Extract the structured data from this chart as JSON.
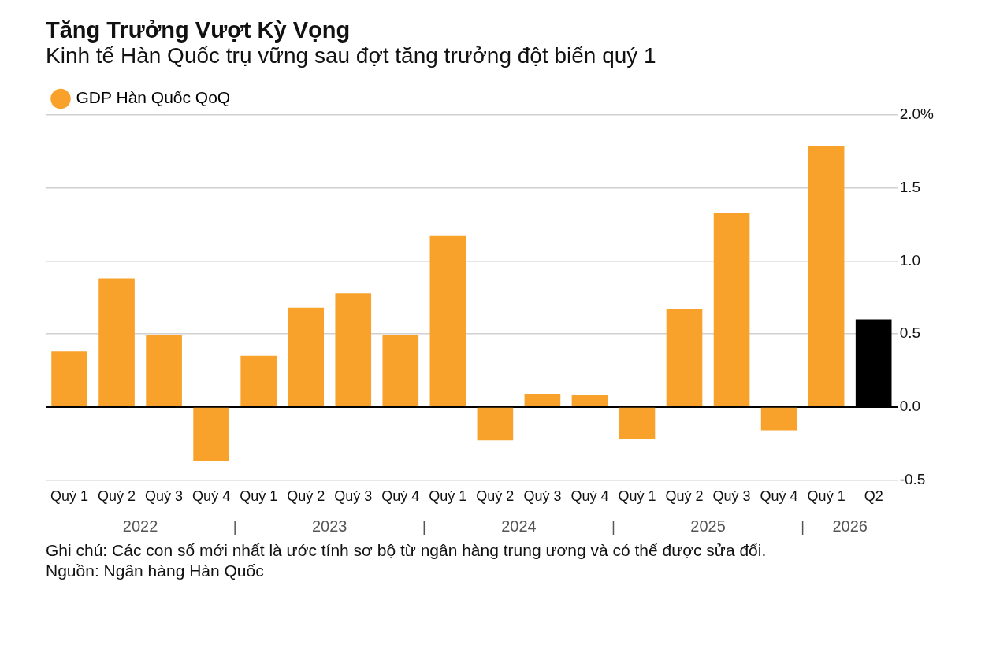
{
  "chart_data": {
    "type": "bar",
    "title": "Tăng Trưởng Vượt Kỳ Vọng",
    "subtitle": "Kinh tế Hàn Quốc trụ vững sau đợt tăng trưởng đột biến quý 1",
    "categories": [
      "Quý 1",
      "Quý 2",
      "Quý 3",
      "Quý 4",
      "Quý 1",
      "Quý 2",
      "Quý 3",
      "Quý 4",
      "Quý 1",
      "Quý 2",
      "Quý 3",
      "Quý 4",
      "Quý 1",
      "Quý 2",
      "Quý 3",
      "Quý 4",
      "Quý 1",
      "Q2"
    ],
    "series": [
      {
        "name": "GDP Hàn Quốc QoQ",
        "color": "#f8a22b",
        "values": [
          0.38,
          0.88,
          0.49,
          -0.37,
          0.35,
          0.68,
          0.78,
          0.49,
          1.17,
          -0.23,
          0.09,
          0.08,
          -0.22,
          0.67,
          1.33,
          -0.16,
          1.79,
          0.6
        ],
        "colors": [
          "#f8a22b",
          "#f8a22b",
          "#f8a22b",
          "#f8a22b",
          "#f8a22b",
          "#f8a22b",
          "#f8a22b",
          "#f8a22b",
          "#f8a22b",
          "#f8a22b",
          "#f8a22b",
          "#f8a22b",
          "#f8a22b",
          "#f8a22b",
          "#f8a22b",
          "#f8a22b",
          "#f8a22b",
          "#000000"
        ]
      }
    ],
    "ylim": [
      -0.5,
      2.0
    ],
    "yticks": [
      {
        "value": -0.5,
        "label": "-0.5"
      },
      {
        "value": 0,
        "label": "0.0"
      },
      {
        "value": 0.5,
        "label": "0.5"
      },
      {
        "value": 1,
        "label": "1.0"
      },
      {
        "value": 1.5,
        "label": "1.5"
      },
      {
        "value": 2,
        "label": "2.0%"
      }
    ],
    "grid": "y",
    "legend": "top left",
    "annotations": [
      "2022",
      "2023",
      "2024",
      "2025",
      "2026",
      "Ghi chú: Các con số mới nhất là ước tính sơ bộ từ ngân hàng trung ương và có thể được sửa đổi.",
      "Nguồn: Ngân hàng Hàn Quốc"
    ]
  }
}
